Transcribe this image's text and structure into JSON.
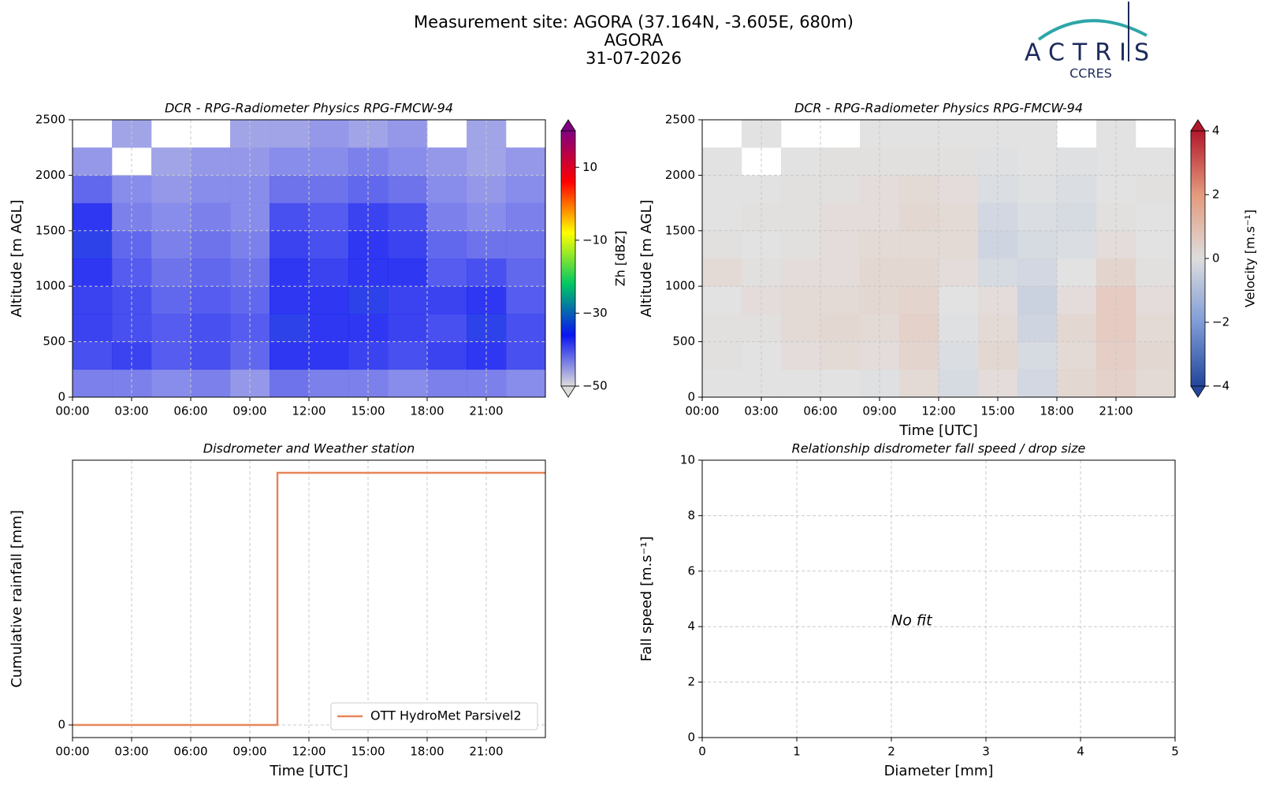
{
  "header": {
    "title": [
      "Measurement site: AGORA (37.164N, -3.605E, 680m)",
      "AGORA",
      "31-07-2026"
    ],
    "logo": "ACTRIS",
    "logo_sub": "CCRES"
  },
  "chart_data": [
    {
      "type": "heatmap",
      "title": "DCR - RPG-Radiometer Physics RPG-FMCW-94",
      "y_label": "Altitude [m AGL]",
      "x_bins": [
        0,
        2,
        4,
        6,
        8,
        10,
        12,
        14,
        16,
        18,
        20,
        22,
        24
      ],
      "y_bins": [
        0,
        250,
        500,
        750,
        1000,
        1250,
        1500,
        1750,
        2000,
        2250,
        2500
      ],
      "values": [
        [
          -42,
          -42,
          -43,
          -42,
          -44,
          -41,
          -42,
          -42,
          -43,
          -42,
          -42,
          -43
        ],
        [
          -38,
          -37,
          -39,
          -38,
          -40,
          -36,
          -36,
          -37,
          -38,
          -37,
          -36,
          -38
        ],
        [
          -37,
          -38,
          -39,
          -38,
          -39,
          -35,
          -36,
          -36,
          -37,
          -38,
          -35,
          -38
        ],
        [
          -37,
          -38,
          -40,
          -39,
          -40,
          -36,
          -36,
          -35,
          -37,
          -37,
          -36,
          -39
        ],
        [
          -36,
          -39,
          -41,
          -40,
          -41,
          -36,
          -37,
          -36,
          -36,
          -39,
          -38,
          -40
        ],
        [
          -35,
          -40,
          -42,
          -41,
          -42,
          -37,
          -38,
          -36,
          -37,
          -40,
          -41,
          -41
        ],
        [
          -36,
          -42,
          -43,
          -42,
          -43,
          -38,
          -39,
          -37,
          -38,
          -42,
          -43,
          -42
        ],
        [
          -40,
          -43,
          -44,
          -43,
          -43,
          -41,
          -41,
          -40,
          -41,
          -43,
          -44,
          -43
        ],
        [
          -44,
          null,
          -45,
          -44,
          -44,
          -43,
          -43,
          -42,
          -43,
          -44,
          -45,
          -44
        ],
        [
          null,
          -45,
          null,
          null,
          -45,
          -45,
          -44,
          -45,
          -44,
          null,
          -45,
          null
        ]
      ],
      "xlim": [
        0,
        24
      ],
      "xticks": [
        {
          "value": 0,
          "label": "00:00"
        },
        {
          "value": 3,
          "label": "03:00"
        },
        {
          "value": 6,
          "label": "06:00"
        },
        {
          "value": 9,
          "label": "09:00"
        },
        {
          "value": 12,
          "label": "12:00"
        },
        {
          "value": 15,
          "label": "15:00"
        },
        {
          "value": 18,
          "label": "18:00"
        },
        {
          "value": 21,
          "label": "21:00"
        }
      ],
      "ylim": [
        0,
        2500
      ],
      "yticks": [
        0,
        500,
        1000,
        1500,
        2000,
        2500
      ],
      "grid": true,
      "colorbar": {
        "label": "Zh [dBZ]",
        "lim": [
          -50,
          20
        ],
        "ticks": [
          {
            "value": -50,
            "label": "−50"
          },
          {
            "value": -30,
            "label": "−30"
          },
          {
            "value": -10,
            "label": "−10"
          },
          10
        ],
        "colormap": [
          "#dcdcdc",
          "#0a14f0",
          "#00c864",
          "#ffff00",
          "#ff0000",
          "#800080"
        ]
      }
    },
    {
      "type": "heatmap",
      "title": "DCR - RPG-Radiometer Physics RPG-FMCW-94",
      "x_label": "Time [UTC]",
      "y_label": "Altitude [m AGL]",
      "x_bins": [
        0,
        2,
        4,
        6,
        8,
        10,
        12,
        14,
        16,
        18,
        20,
        22,
        24
      ],
      "y_bins": [
        0,
        250,
        500,
        750,
        1000,
        1250,
        1500,
        1750,
        2000,
        2250,
        2500
      ],
      "values": [
        [
          0,
          0,
          0,
          0,
          -0.1,
          0.3,
          -0.3,
          0.2,
          -0.4,
          0.4,
          0.6,
          0.3
        ],
        [
          0.1,
          0,
          0.2,
          0.3,
          0.2,
          0.5,
          -0.2,
          0.4,
          -0.3,
          0.3,
          0.7,
          0.4
        ],
        [
          0.1,
          0.1,
          0.3,
          0.4,
          0.3,
          0.6,
          -0.1,
          0.3,
          -0.5,
          0.4,
          0.8,
          0.3
        ],
        [
          0,
          0.2,
          0.3,
          0.3,
          0.4,
          0.5,
          0,
          0.2,
          -0.6,
          0.2,
          0.8,
          0.2
        ],
        [
          0.3,
          0.1,
          0.2,
          0.2,
          0.4,
          0.4,
          0.2,
          -0.3,
          -0.4,
          0,
          0.5,
          0.1
        ],
        [
          0.1,
          0,
          0.1,
          0.2,
          0.3,
          0.3,
          0.3,
          -0.5,
          -0.3,
          -0.2,
          0.2,
          0
        ],
        [
          0,
          0.1,
          0.1,
          0.2,
          0.2,
          0.4,
          0.3,
          -0.4,
          -0.2,
          -0.3,
          0.1,
          0
        ],
        [
          0,
          0,
          0.1,
          0.1,
          0.2,
          0.3,
          0.2,
          -0.2,
          -0.1,
          -0.2,
          0,
          0.1
        ],
        [
          0,
          null,
          0,
          0.1,
          0.1,
          0.1,
          0.1,
          -0.1,
          0,
          -0.1,
          0,
          0
        ],
        [
          null,
          0,
          null,
          null,
          0,
          0,
          0,
          0,
          0,
          null,
          0,
          null
        ]
      ],
      "xlim": [
        0,
        24
      ],
      "xticks": [
        {
          "value": 0,
          "label": "00:00"
        },
        {
          "value": 3,
          "label": "03:00"
        },
        {
          "value": 6,
          "label": "06:00"
        },
        {
          "value": 9,
          "label": "09:00"
        },
        {
          "value": 12,
          "label": "12:00"
        },
        {
          "value": 15,
          "label": "15:00"
        },
        {
          "value": 18,
          "label": "18:00"
        },
        {
          "value": 21,
          "label": "21:00"
        }
      ],
      "ylim": [
        0,
        2500
      ],
      "yticks": [
        0,
        500,
        1000,
        1500,
        2000,
        2500
      ],
      "grid": true,
      "colorbar": {
        "label": "Velocity [m.s⁻¹]",
        "lim": [
          -4,
          4
        ],
        "ticks": [
          {
            "value": -4,
            "label": "−4"
          },
          {
            "value": -2,
            "label": "−2"
          },
          0,
          2,
          4
        ],
        "colormap": [
          "#23469c",
          "#7f9cd6",
          "#dddddd",
          "#e49a7c",
          "#b2182b"
        ]
      }
    },
    {
      "type": "line",
      "title": "Disdrometer and Weather station",
      "x_label": "Time [UTC]",
      "y_label": "Cumulative rainfall [mm]",
      "x": [
        0,
        10.4,
        10.4,
        24
      ],
      "series": [
        {
          "name": "OTT HydroMet Parsivel2",
          "color": "#e8855a",
          "values": [
            0,
            0,
            1,
            1
          ]
        }
      ],
      "xlim": [
        0,
        24
      ],
      "xticks": [
        {
          "value": 0,
          "label": "00:00"
        },
        {
          "value": 3,
          "label": "03:00"
        },
        {
          "value": 6,
          "label": "06:00"
        },
        {
          "value": 9,
          "label": "09:00"
        },
        {
          "value": 12,
          "label": "12:00"
        },
        {
          "value": 15,
          "label": "15:00"
        },
        {
          "value": 18,
          "label": "18:00"
        },
        {
          "value": 21,
          "label": "21:00"
        }
      ],
      "ylim": [
        -0.05,
        1.05
      ],
      "yticks": [
        0
      ],
      "grid": true,
      "legend": "lower right"
    },
    {
      "type": "scatter",
      "title": "Relationship disdrometer fall speed / drop size",
      "x_label": "Diameter [mm]",
      "y_label": "Fall speed [m.s⁻¹]",
      "x": [],
      "y": [],
      "annotation": "No fit",
      "xlim": [
        0,
        5
      ],
      "xticks": [
        0,
        1,
        2,
        3,
        4,
        5
      ],
      "ylim": [
        0,
        10
      ],
      "yticks": [
        0,
        2,
        4,
        6,
        8,
        10
      ],
      "grid": true
    }
  ]
}
